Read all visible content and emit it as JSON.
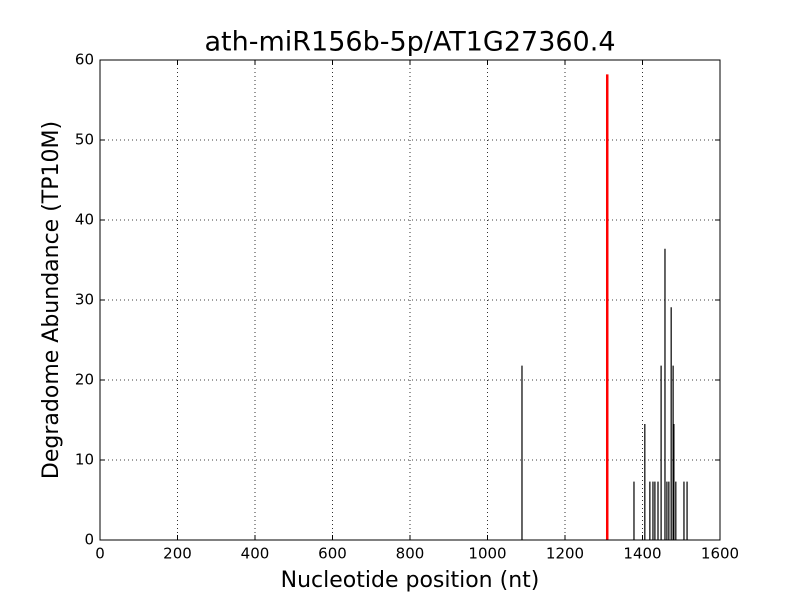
{
  "chart_data": {
    "type": "stem",
    "title": "ath-miR156b-5p/AT1G27360.4",
    "x_label": "Nucleotide position (nt)",
    "y_label": "Degradome Abundance (TP10M)",
    "series": [
      {
        "color": "#000000",
        "x": [
          1089,
          1378,
          1406,
          1419,
          1427,
          1432,
          1440,
          1448,
          1458,
          1463,
          1468,
          1474,
          1479,
          1481,
          1486,
          1507,
          1515
        ],
        "values": [
          21.8,
          7.3,
          14.5,
          7.3,
          7.3,
          7.3,
          7.3,
          21.8,
          36.4,
          7.3,
          7.3,
          29.1,
          21.8,
          14.5,
          7.3,
          7.3,
          7.3
        ]
      },
      {
        "color": "#ff0000",
        "x": [
          1309
        ],
        "values": [
          58.2
        ]
      }
    ],
    "xlim": [
      0,
      1600
    ],
    "xticks": [
      0,
      200,
      400,
      600,
      800,
      1000,
      1200,
      1400,
      1600
    ],
    "ylim": [
      0,
      60
    ],
    "yticks": [
      0,
      10,
      20,
      30,
      40,
      50,
      60
    ],
    "grid": true
  }
}
